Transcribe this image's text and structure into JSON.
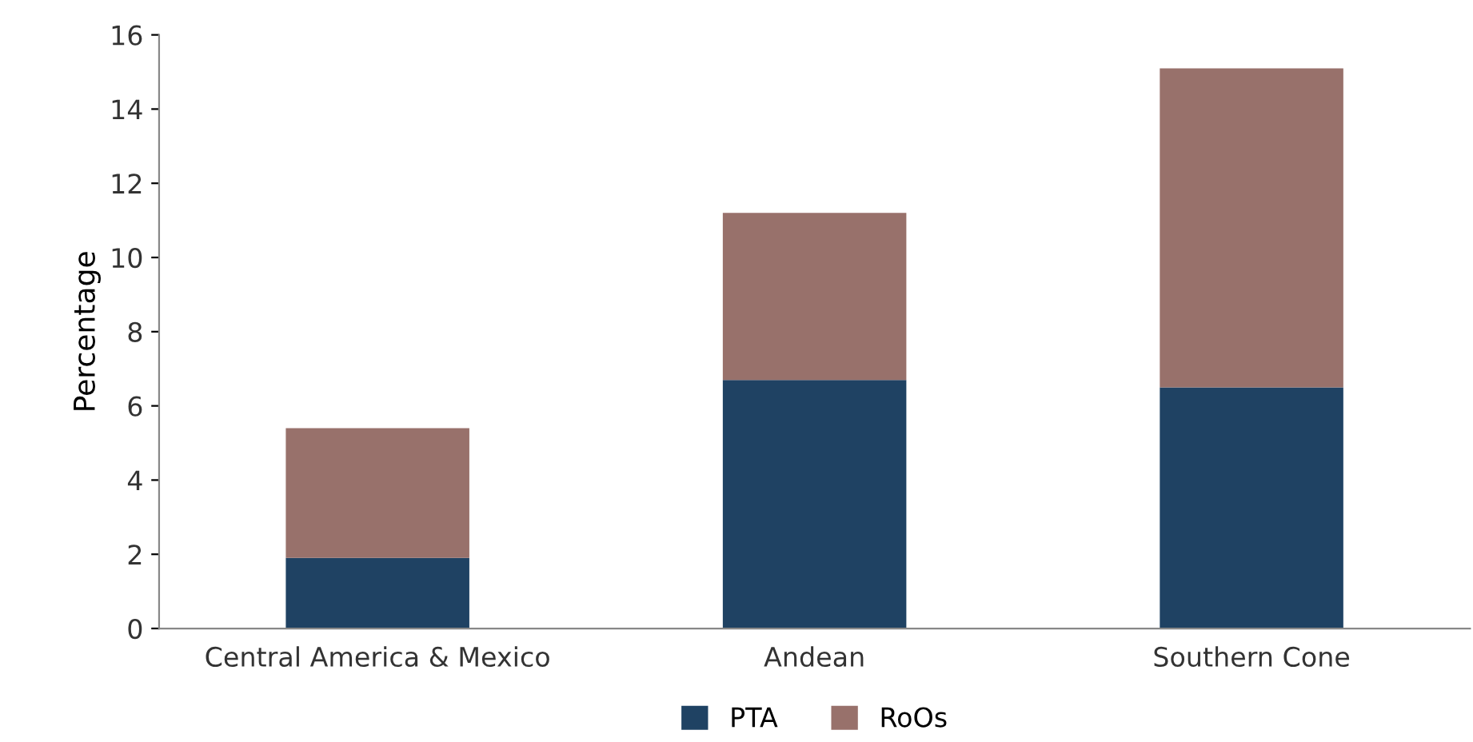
{
  "chart_data": {
    "type": "bar",
    "stacked": true,
    "ylabel": "Percentage",
    "categories": [
      "Central America & Mexico",
      "Andean",
      "Southern Cone"
    ],
    "series": [
      {
        "name": "PTA",
        "color": "#1f4263",
        "values": [
          1.9,
          6.7,
          6.5
        ]
      },
      {
        "name": "RoOs",
        "color": "#98716b",
        "values": [
          3.5,
          4.5,
          8.6
        ]
      }
    ],
    "ylim": [
      0,
      16
    ],
    "yticks": [
      0,
      2,
      4,
      6,
      8,
      10,
      12,
      14,
      16
    ],
    "grid": false,
    "legend": "bottom"
  }
}
